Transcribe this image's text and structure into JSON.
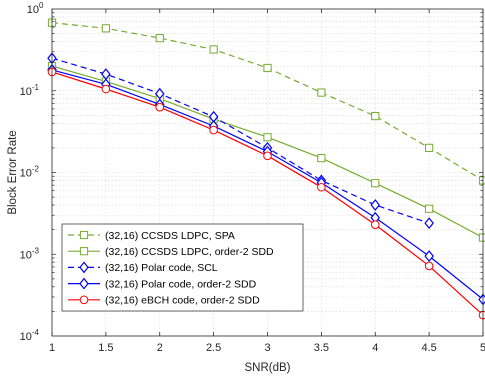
{
  "chart_data": {
    "type": "line",
    "title": "",
    "xlabel": "SNR(dB)",
    "ylabel": "Block Error Rate",
    "xlim": [
      1,
      5
    ],
    "ylim": [
      0.0001,
      1
    ],
    "yscale": "log",
    "grid": true,
    "legend_position": "bottom-left",
    "x_ticks": [
      "1",
      "1.5",
      "2",
      "2.5",
      "3",
      "3.5",
      "4",
      "4.5",
      "5"
    ],
    "y_ticks": [
      {
        "base": "10",
        "exp": "0"
      },
      {
        "base": "10",
        "exp": "-1"
      },
      {
        "base": "10",
        "exp": "-2"
      },
      {
        "base": "10",
        "exp": "-3"
      },
      {
        "base": "10",
        "exp": "-4"
      }
    ],
    "series": [
      {
        "name": "(32,16) CCSDS LDPC, SPA",
        "color": "#77AC30",
        "dash": "dashed",
        "marker": "square",
        "x": [
          1,
          1.5,
          2,
          2.5,
          3,
          3.5,
          4,
          4.5,
          5
        ],
        "y": [
          0.68,
          0.58,
          0.44,
          0.32,
          0.19,
          0.095,
          0.049,
          0.02,
          0.008
        ]
      },
      {
        "name": "(32,16) CCSDS LDPC, order-2 SDD",
        "color": "#77AC30",
        "dash": "solid",
        "marker": "square",
        "x": [
          1,
          1.5,
          2,
          2.5,
          3,
          3.5,
          4,
          4.5,
          5
        ],
        "y": [
          0.2,
          0.13,
          0.08,
          0.045,
          0.027,
          0.015,
          0.0074,
          0.0036,
          0.0016
        ]
      },
      {
        "name": "(32,16) Polar code, SCL",
        "color": "#0000FF",
        "dash": "dashed",
        "marker": "diamond",
        "x": [
          1,
          1.5,
          2,
          2.5,
          3,
          3.5,
          4,
          4.5
        ],
        "y": [
          0.25,
          0.16,
          0.092,
          0.048,
          0.02,
          0.008,
          0.004,
          0.0024
        ]
      },
      {
        "name": "(32,16) Polar code, order-2 SDD",
        "color": "#0000FF",
        "dash": "solid",
        "marker": "diamond",
        "x": [
          1,
          1.5,
          2,
          2.5,
          3,
          3.5,
          4,
          4.5,
          5
        ],
        "y": [
          0.18,
          0.12,
          0.068,
          0.037,
          0.018,
          0.0075,
          0.0028,
          0.00095,
          0.00028
        ]
      },
      {
        "name": "(32,16) eBCH code, order-2 SDD",
        "color": "#FF0000",
        "dash": "solid",
        "marker": "circle",
        "x": [
          1,
          1.5,
          2,
          2.5,
          3,
          3.5,
          4,
          4.5,
          5
        ],
        "y": [
          0.17,
          0.105,
          0.063,
          0.033,
          0.016,
          0.0066,
          0.0023,
          0.00072,
          0.00018
        ]
      }
    ]
  }
}
